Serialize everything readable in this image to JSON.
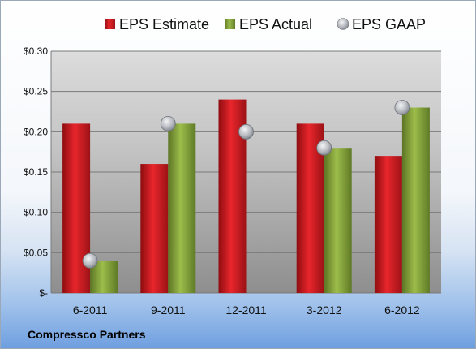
{
  "company_label": "Compressco Partners",
  "colors": {
    "estimate": "#d81f26",
    "actual": "#8fae3c",
    "gaap": "#b9bcc2"
  },
  "chart_data": {
    "type": "bar",
    "categories": [
      "6-2011",
      "9-2011",
      "12-2011",
      "3-2012",
      "6-2012"
    ],
    "series": [
      {
        "name": "EPS Estimate",
        "kind": "bar",
        "values": [
          0.21,
          0.16,
          0.24,
          0.21,
          0.17
        ]
      },
      {
        "name": "EPS Actual",
        "kind": "bar",
        "values": [
          0.04,
          0.21,
          null,
          0.18,
          0.23
        ]
      },
      {
        "name": "EPS GAAP",
        "kind": "marker",
        "values": [
          0.04,
          0.21,
          0.2,
          0.18,
          0.23
        ]
      }
    ],
    "ylim": [
      0,
      0.3
    ],
    "yticks": [
      0,
      0.05,
      0.1,
      0.15,
      0.2,
      0.25,
      0.3
    ],
    "ytick_labels": [
      "$-",
      "$0.05",
      "$0.10",
      "$0.15",
      "$0.20",
      "$0.25",
      "$0.30"
    ],
    "grid": true,
    "legend": "top"
  }
}
